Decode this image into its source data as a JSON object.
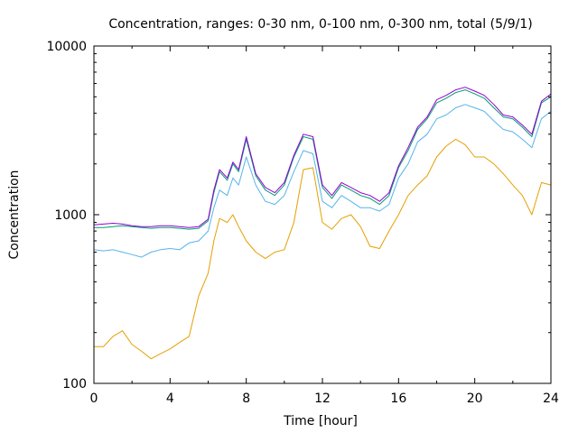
{
  "chart_data": {
    "type": "line",
    "title": "Concentration, ranges: 0-30 nm, 0-100 nm, 0-300 nm, total (5/9/1)",
    "xlabel": "Time [hour]",
    "ylabel": "Concentration",
    "xlim": [
      0,
      24
    ],
    "ylim": [
      100,
      10000
    ],
    "yscale": "log",
    "xticks": [
      0,
      4,
      8,
      12,
      16,
      20,
      24
    ],
    "xtick_labels": [
      "0",
      "4",
      "8",
      "12",
      "16",
      "20",
      "24"
    ],
    "yticks": [
      100,
      1000,
      10000
    ],
    "ytick_labels": [
      "100",
      "1000",
      "10000"
    ],
    "grid": false,
    "x": [
      0,
      0.5,
      1,
      1.5,
      2,
      2.5,
      3,
      3.5,
      4,
      4.5,
      5,
      5.5,
      6,
      6.3,
      6.6,
      7,
      7.3,
      7.6,
      8,
      8.5,
      9,
      9.5,
      10,
      10.5,
      11,
      11.5,
      12,
      12.5,
      13,
      13.5,
      14,
      14.5,
      15,
      15.5,
      16,
      16.5,
      17,
      17.5,
      18,
      18.5,
      19,
      19.5,
      20,
      20.5,
      21,
      21.5,
      22,
      22.5,
      23,
      23.5,
      24
    ],
    "series": [
      {
        "name": "0-30 nm",
        "color": "#e5a000",
        "values": [
          165,
          165,
          190,
          205,
          170,
          155,
          140,
          150,
          160,
          175,
          190,
          330,
          450,
          700,
          950,
          900,
          1000,
          850,
          700,
          600,
          550,
          600,
          620,
          900,
          1850,
          1900,
          900,
          820,
          950,
          1000,
          850,
          650,
          630,
          800,
          1000,
          1300,
          1500,
          1700,
          2200,
          2550,
          2800,
          2600,
          2200,
          2200,
          2000,
          1750,
          1500,
          1300,
          1000,
          1550,
          1500
        ]
      },
      {
        "name": "0-100 nm",
        "color": "#56b4e9",
        "values": [
          620,
          610,
          620,
          600,
          580,
          560,
          600,
          620,
          630,
          620,
          680,
          700,
          800,
          1100,
          1400,
          1300,
          1650,
          1500,
          2200,
          1500,
          1200,
          1150,
          1300,
          1800,
          2400,
          2300,
          1200,
          1100,
          1300,
          1200,
          1100,
          1100,
          1050,
          1150,
          1650,
          2000,
          2700,
          3000,
          3700,
          3900,
          4300,
          4500,
          4300,
          4100,
          3600,
          3200,
          3100,
          2800,
          2500,
          3700,
          4100
        ]
      },
      {
        "name": "0-300 nm",
        "color": "#009e73",
        "values": [
          840,
          840,
          850,
          860,
          850,
          840,
          830,
          840,
          840,
          830,
          820,
          830,
          920,
          1350,
          1800,
          1600,
          2000,
          1800,
          2800,
          1700,
          1400,
          1300,
          1500,
          2200,
          2900,
          2800,
          1450,
          1250,
          1500,
          1400,
          1300,
          1250,
          1150,
          1300,
          1900,
          2400,
          3200,
          3700,
          4600,
          4900,
          5300,
          5500,
          5200,
          4900,
          4300,
          3800,
          3700,
          3300,
          2900,
          4600,
          5000
        ]
      },
      {
        "name": "total",
        "color": "#9400d3",
        "values": [
          870,
          880,
          890,
          880,
          860,
          850,
          850,
          860,
          860,
          850,
          840,
          850,
          940,
          1400,
          1850,
          1650,
          2050,
          1850,
          2900,
          1750,
          1450,
          1350,
          1550,
          2250,
          3000,
          2900,
          1500,
          1300,
          1550,
          1450,
          1350,
          1300,
          1200,
          1350,
          1950,
          2500,
          3300,
          3800,
          4800,
          5100,
          5500,
          5700,
          5400,
          5100,
          4500,
          3900,
          3800,
          3400,
          3000,
          4700,
          5200
        ]
      }
    ]
  }
}
